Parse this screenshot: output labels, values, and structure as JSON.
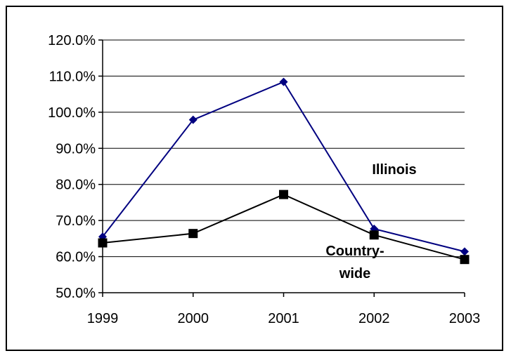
{
  "chart_data": {
    "type": "line",
    "title": "",
    "xlabel": "",
    "ylabel": "",
    "x": [
      "1999",
      "2000",
      "2001",
      "2002",
      "2003"
    ],
    "ylim": [
      50,
      120
    ],
    "y_ticks": [
      "50.0%",
      "60.0%",
      "70.0%",
      "80.0%",
      "90.0%",
      "100.0%",
      "110.0%",
      "120.0%"
    ],
    "y_tick_values": [
      50,
      60,
      70,
      80,
      90,
      100,
      110,
      120
    ],
    "grid": true,
    "legend": "none",
    "series": [
      {
        "name": "Illinois",
        "values": [
          65.5,
          97.9,
          108.4,
          67.7,
          61.4
        ],
        "color": "#000080",
        "marker": "diamond"
      },
      {
        "name": "Country-wide",
        "label_lines": [
          "Country-",
          "wide"
        ],
        "values": [
          63.8,
          66.4,
          77.2,
          66.0,
          59.2
        ],
        "color": "#000000",
        "marker": "square"
      }
    ]
  }
}
